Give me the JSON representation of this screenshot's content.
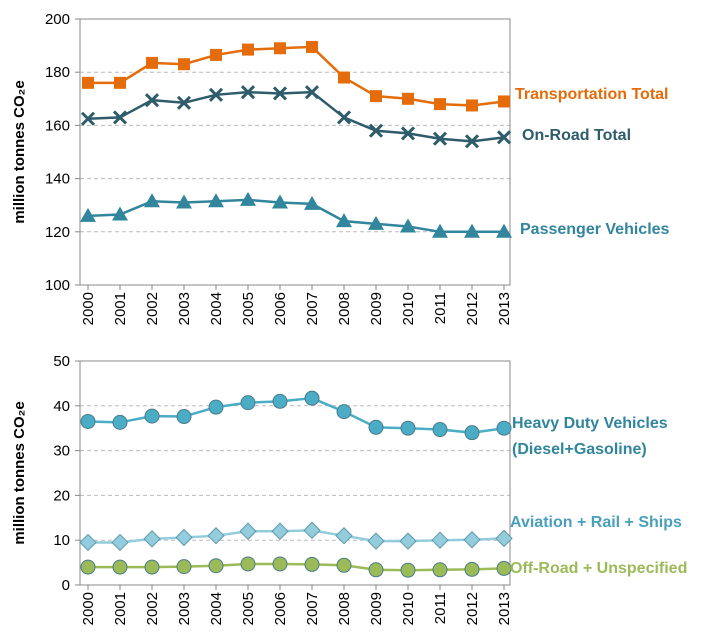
{
  "chart_data": [
    {
      "type": "line",
      "y_label": "million tonnes CO₂e",
      "categories": [
        "2000",
        "2001",
        "2002",
        "2003",
        "2004",
        "2005",
        "2006",
        "2007",
        "2008",
        "2009",
        "2010",
        "2011",
        "2012",
        "2013"
      ],
      "ylim": [
        100,
        200
      ],
      "yticks": [
        100,
        120,
        140,
        160,
        180,
        200
      ],
      "grid": true,
      "series": [
        {
          "name": "Transportation Total",
          "color": "#e46c0a",
          "marker": "square",
          "values": [
            176,
            176,
            183.5,
            183,
            186.5,
            188.5,
            189,
            189.5,
            178,
            171,
            170,
            168,
            167.5,
            169
          ]
        },
        {
          "name": "On-Road Total",
          "color": "#2e5c6b",
          "marker": "x",
          "values": [
            162.5,
            163,
            169.5,
            168.5,
            171.5,
            172.5,
            172,
            172.5,
            163,
            158,
            157,
            155,
            154,
            155.5
          ]
        },
        {
          "name": "Passenger Vehicles",
          "color": "#31859c",
          "marker": "triangle",
          "values": [
            126,
            126.5,
            131.5,
            131,
            131.5,
            132,
            131,
            130.5,
            124,
            123,
            122,
            120,
            120,
            120
          ]
        }
      ]
    },
    {
      "type": "line",
      "y_label": "million tonnes CO₂e",
      "categories": [
        "2000",
        "2001",
        "2002",
        "2003",
        "2004",
        "2005",
        "2006",
        "2007",
        "2008",
        "2009",
        "2010",
        "2011",
        "2012",
        "2013"
      ],
      "ylim": [
        0,
        50
      ],
      "yticks": [
        0,
        10,
        20,
        30,
        40,
        50
      ],
      "grid": true,
      "series": [
        {
          "name": "Heavy Duty Vehicles (Diesel+Gasoline)",
          "color": "#4bacc6",
          "marker": "circle",
          "values": [
            36.5,
            36.3,
            37.7,
            37.6,
            39.7,
            40.7,
            41,
            41.7,
            38.7,
            35.2,
            35,
            34.7,
            34,
            35
          ]
        },
        {
          "name": "Aviation + Rail + Ships",
          "color": "#93cddd",
          "marker": "diamond",
          "values": [
            9.5,
            9.5,
            10.3,
            10.6,
            11,
            12,
            12,
            12.2,
            11,
            9.8,
            9.8,
            10,
            10.1,
            10.4
          ]
        },
        {
          "name": "Off-Road + Unspecified",
          "color": "#9bbb59",
          "marker": "circle",
          "values": [
            4,
            4,
            4,
            4.1,
            4.3,
            4.7,
            4.7,
            4.6,
            4.4,
            3.4,
            3.3,
            3.4,
            3.5,
            3.7
          ]
        }
      ]
    }
  ]
}
